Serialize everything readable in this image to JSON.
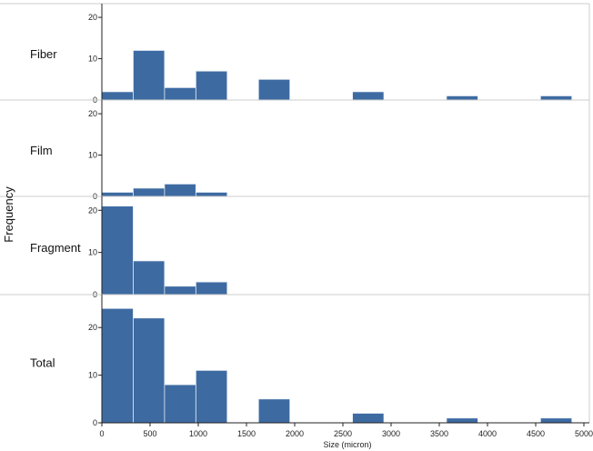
{
  "chart_data": {
    "type": "bar",
    "layout": "faceted-histogram",
    "xlabel": "Size (micron)",
    "ylabel": "Frequency",
    "bin_width": 325,
    "bin_starts": [
      0,
      325,
      650,
      975,
      1300,
      1625,
      1950,
      2275,
      2600,
      2925,
      3250,
      3575,
      3900,
      4225,
      4550
    ],
    "xlim": [
      0,
      5000
    ],
    "xticks": [
      0,
      500,
      1000,
      1500,
      2000,
      2500,
      3000,
      3500,
      4000,
      4500,
      5000
    ],
    "colors": {
      "bar": "#3d6aa1",
      "bar_edge": "#e8eef6",
      "axis": "#222222",
      "frame": "#cccccc"
    },
    "panels": [
      {
        "name": "Fiber",
        "ylim": [
          0,
          22
        ],
        "yticks": [
          0,
          10,
          20
        ],
        "values": [
          2,
          12,
          3,
          7,
          0,
          5,
          0,
          0,
          2,
          0,
          0,
          1,
          0,
          0,
          1
        ]
      },
      {
        "name": "Film",
        "ylim": [
          0,
          22
        ],
        "yticks": [
          0,
          10,
          20
        ],
        "values": [
          1,
          2,
          3,
          1,
          0,
          0,
          0,
          0,
          0,
          0,
          0,
          0,
          0,
          0,
          0
        ]
      },
      {
        "name": "Fragment",
        "ylim": [
          0,
          22
        ],
        "yticks": [
          0,
          10,
          20
        ],
        "values": [
          21,
          8,
          2,
          3,
          0,
          0,
          0,
          0,
          0,
          0,
          0,
          0,
          0,
          0,
          0
        ]
      },
      {
        "name": "Total",
        "ylim": [
          0,
          25
        ],
        "yticks": [
          0,
          10,
          20
        ],
        "values": [
          24,
          22,
          8,
          11,
          0,
          5,
          0,
          0,
          2,
          0,
          0,
          1,
          0,
          0,
          1
        ]
      }
    ]
  }
}
